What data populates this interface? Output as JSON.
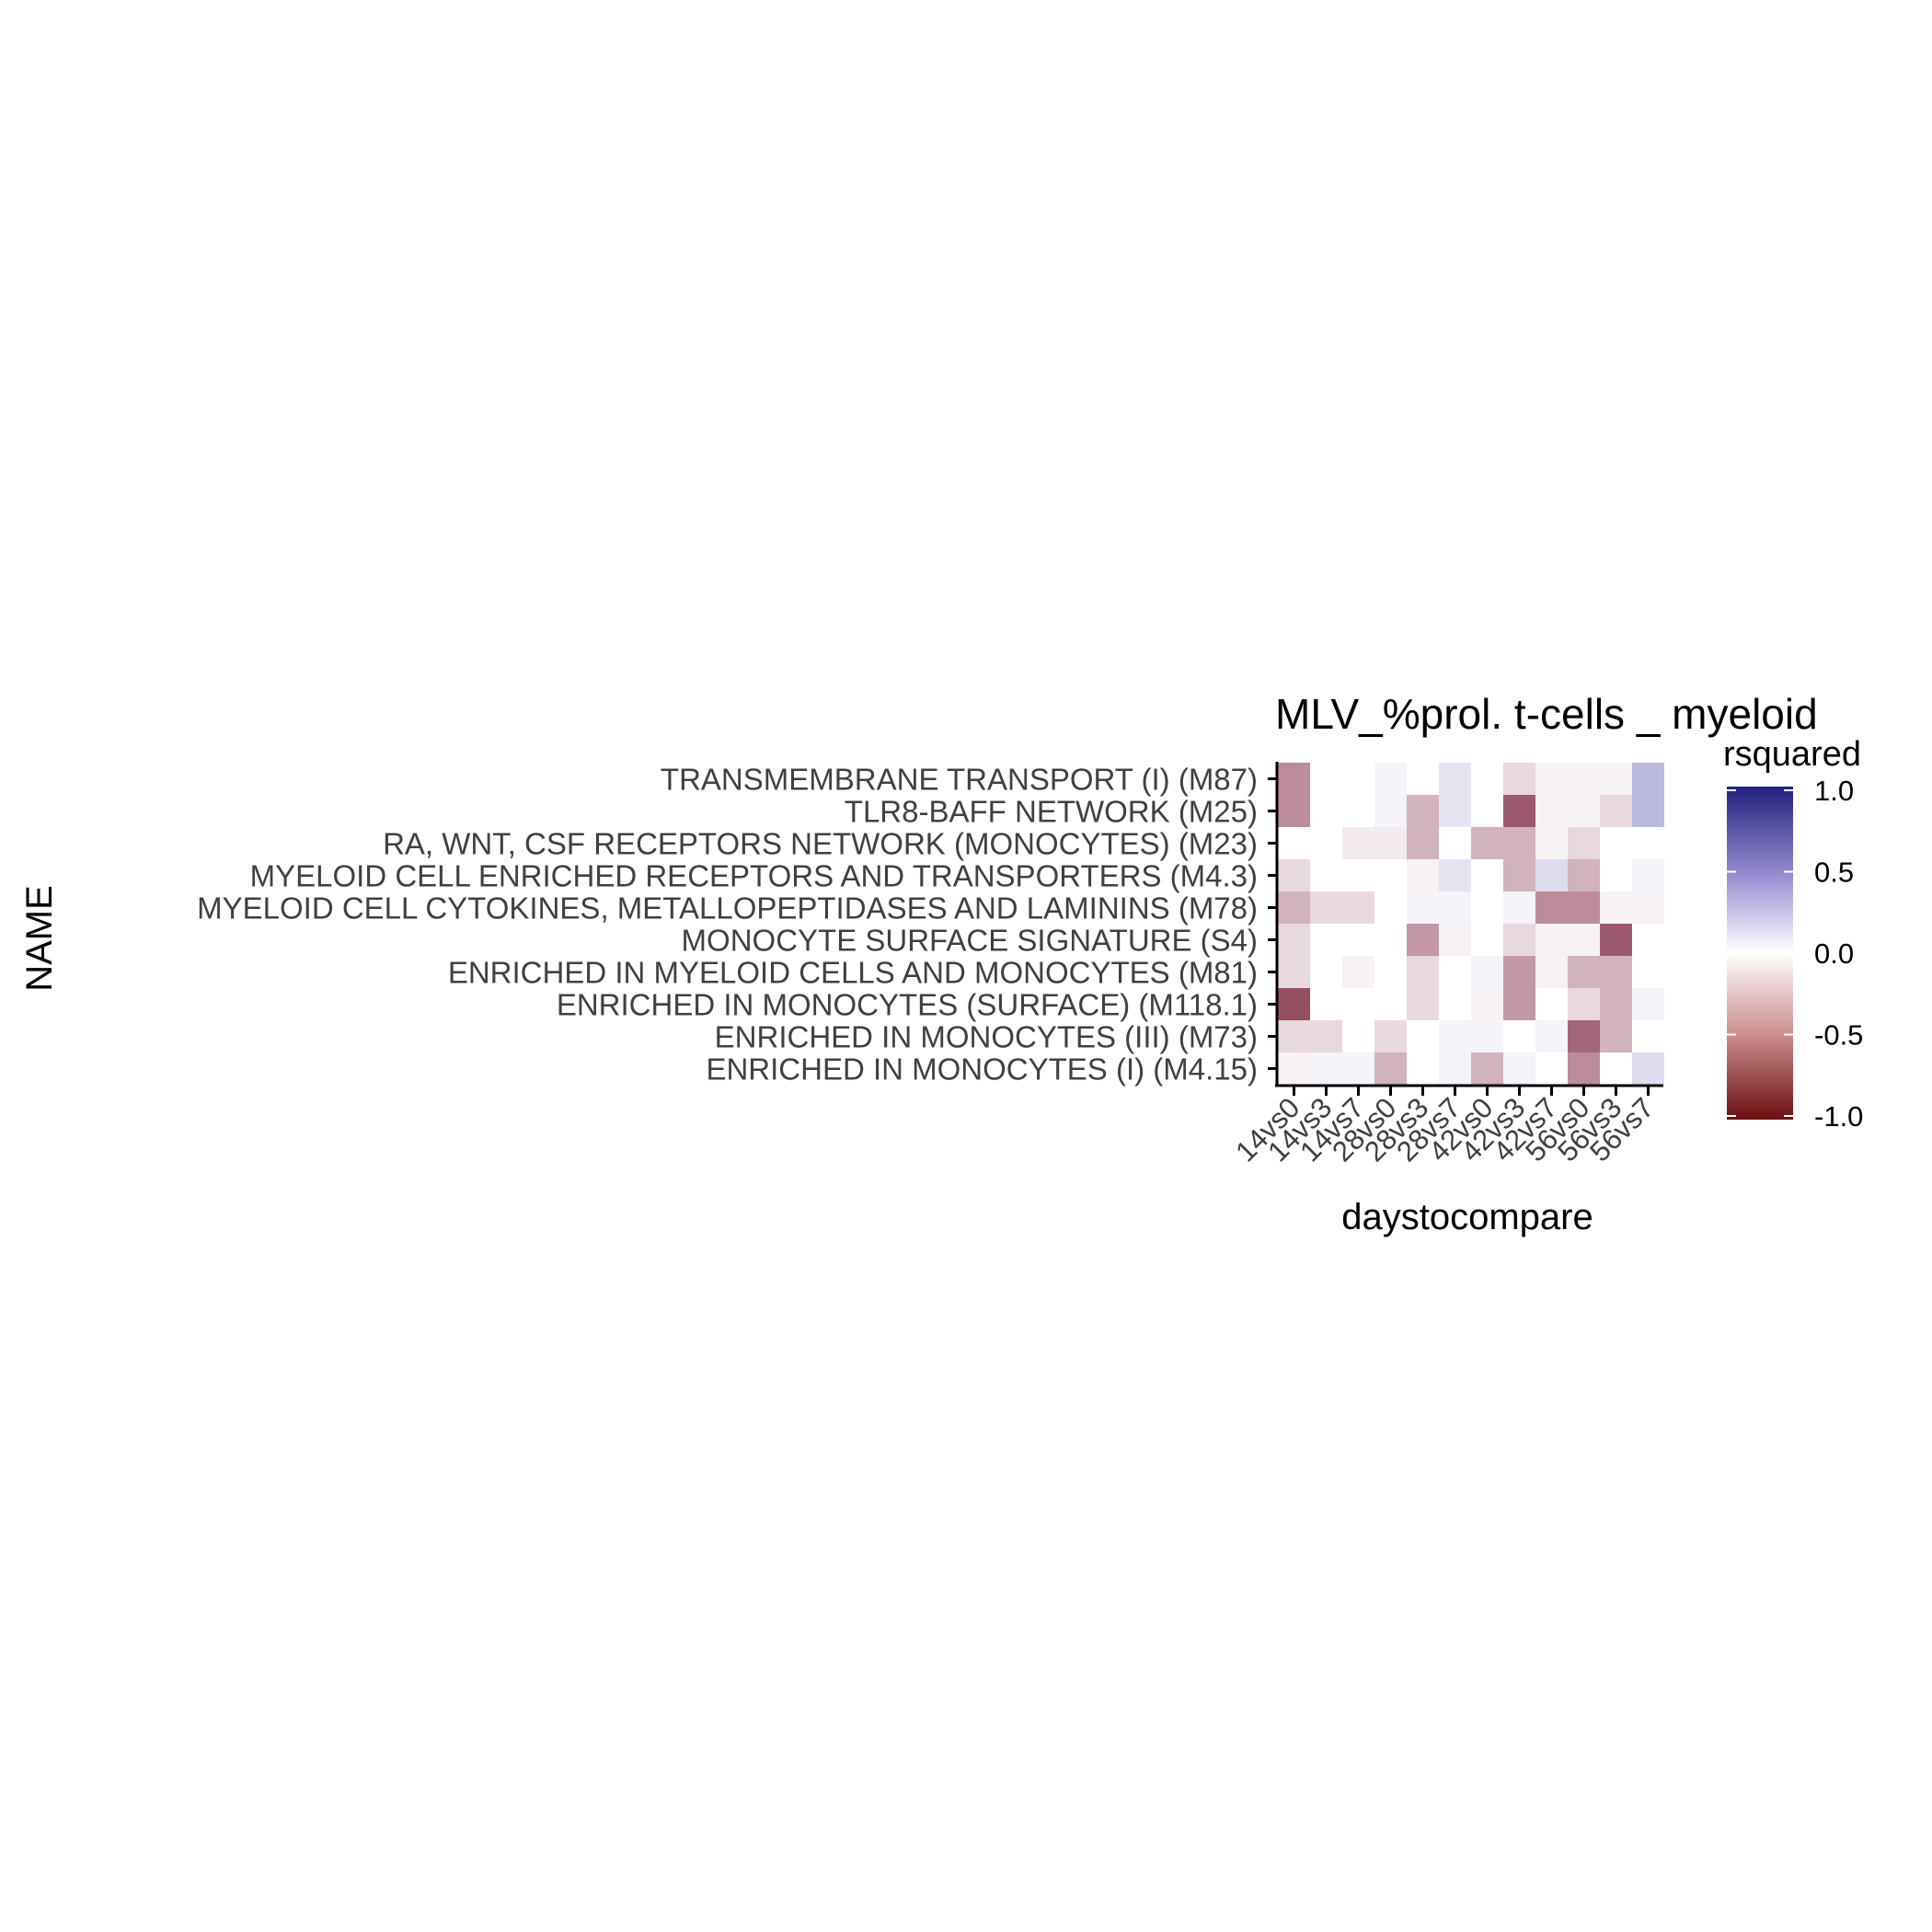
{
  "chart_data": {
    "type": "heatmap",
    "title": "MLV_%prol. t-cells _ myeloid",
    "xlabel": "daystocompare",
    "ylabel": "NAME",
    "x": [
      "14vs0",
      "14vs3",
      "14vs7",
      "28vs0",
      "28vs3",
      "28vs7",
      "42vs0",
      "42vs3",
      "42vs7",
      "56vs0",
      "56vs3",
      "56vs7"
    ],
    "y": [
      "TRANSMEMBRANE TRANSPORT (I) (M87)",
      "TLR8-BAFF NETWORK (M25)",
      "RA, WNT, CSF RECEPTORS NETWORK (MONOCYTES) (M23)",
      "MYELOID CELL ENRICHED RECEPTORS AND TRANSPORTERS (M4.3)",
      "MYELOID CELL CYTOKINES, METALLOPEPTIDASES AND LAMININS (M78)",
      "MONOCYTE SURFACE SIGNATURE (S4)",
      "ENRICHED IN MYELOID CELLS AND MONOCYTES (M81)",
      "ENRICHED IN MONOCYTES (SURFACE) (M118.1)",
      "ENRICHED IN MONOCYTES (III) (M73)",
      "ENRICHED IN MONOCYTES (I) (M4.15)"
    ],
    "values": [
      [
        -0.45,
        0.0,
        0.0,
        0.05,
        0.0,
        0.12,
        0.0,
        -0.15,
        -0.05,
        -0.05,
        -0.05,
        0.3
      ],
      [
        -0.45,
        0.0,
        0.0,
        0.05,
        -0.3,
        0.12,
        0.0,
        -0.65,
        -0.05,
        -0.05,
        -0.15,
        0.3
      ],
      [
        0.0,
        0.0,
        -0.08,
        -0.08,
        -0.3,
        0.0,
        -0.3,
        -0.3,
        -0.05,
        -0.15,
        0.0,
        0.0
      ],
      [
        -0.15,
        0.0,
        0.0,
        0.0,
        -0.05,
        0.12,
        0.0,
        -0.3,
        0.15,
        -0.3,
        0.0,
        0.05
      ],
      [
        -0.3,
        -0.15,
        -0.15,
        0.0,
        0.05,
        0.05,
        0.0,
        0.05,
        -0.45,
        -0.45,
        -0.05,
        -0.05
      ],
      [
        -0.15,
        0.0,
        0.0,
        0.0,
        -0.4,
        -0.05,
        0.0,
        -0.15,
        -0.05,
        -0.05,
        -0.65,
        0.0
      ],
      [
        -0.15,
        0.0,
        -0.05,
        0.0,
        -0.15,
        0.0,
        0.05,
        -0.4,
        -0.05,
        -0.3,
        -0.3,
        0.0
      ],
      [
        -0.7,
        0.0,
        0.0,
        0.0,
        -0.15,
        0.0,
        -0.05,
        -0.4,
        0.0,
        -0.15,
        -0.3,
        0.05
      ],
      [
        -0.15,
        -0.15,
        0.0,
        -0.15,
        0.0,
        0.05,
        0.05,
        0.0,
        0.05,
        -0.6,
        -0.3,
        0.0
      ],
      [
        -0.05,
        0.05,
        0.05,
        -0.3,
        0.0,
        0.05,
        -0.3,
        0.05,
        0.0,
        -0.45,
        0.0,
        0.15
      ]
    ],
    "legend": {
      "title": "rsquared",
      "range": [
        -1.0,
        1.0
      ],
      "ticks": [
        "1.0",
        "0.5",
        "0.0",
        "-0.5",
        "-1.0"
      ],
      "tick_values": [
        1.0,
        0.5,
        0.0,
        -0.5,
        -1.0
      ],
      "colors": {
        "low": "#67001f",
        "mid": "#ffffff",
        "high": "#1f1a8a"
      },
      "placement": "right"
    },
    "grid": false
  }
}
